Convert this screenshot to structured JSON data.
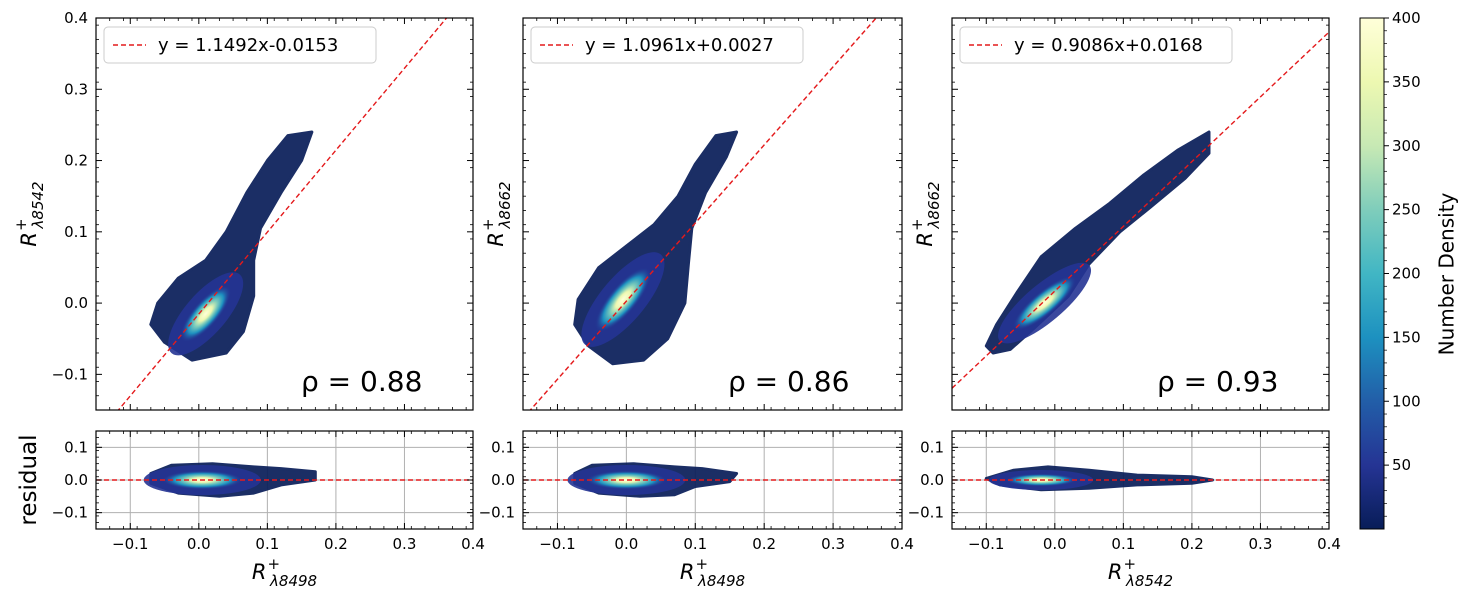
{
  "colors": {
    "fit_line": "#e41a1c",
    "grid": "#b0b0b0",
    "axis": "#000000",
    "legend_border": "#cccccc",
    "colormap": [
      "#081d58",
      "#253494",
      "#225ea8",
      "#1d91c0",
      "#41b6c4",
      "#7fcdbb",
      "#c7e9b4",
      "#edf8b1",
      "#ffffd9"
    ]
  },
  "chart_data": [
    {
      "type": "scatter",
      "subtype": "2d-density",
      "panel": "top",
      "xlabel_base": "R",
      "xlabel_sub": "λ8498",
      "xlabel_sup": "+",
      "ylabel_base": "R",
      "ylabel_sub": "λ8542",
      "ylabel_sup": "+",
      "xlim": [
        -0.15,
        0.4
      ],
      "ylim": [
        -0.15,
        0.4
      ],
      "xticks": [
        -0.1,
        0.0,
        0.1,
        0.2,
        0.3,
        0.4
      ],
      "yticks": [
        -0.1,
        0.0,
        0.1,
        0.2,
        0.3,
        0.4
      ],
      "xtick_labels": [
        "−0.1",
        "0.0",
        "0.1",
        "0.2",
        "0.3",
        "0.4"
      ],
      "ytick_labels": [
        "−0.1",
        "0.0",
        "0.1",
        "0.2",
        "0.3",
        "0.4"
      ],
      "show_xtick_labels": false,
      "show_ytick_labels": true,
      "fit": {
        "slope": 1.1492,
        "intercept": -0.0153,
        "label": "y = 1.1492x-0.0153"
      },
      "rho_label": "ρ = 0.88",
      "density_path": [
        [
          -0.01,
          -0.08
        ],
        [
          -0.05,
          -0.055
        ],
        [
          -0.07,
          -0.03
        ],
        [
          -0.06,
          0.0
        ],
        [
          -0.03,
          0.035
        ],
        [
          0.01,
          0.06
        ],
        [
          0.04,
          0.1
        ],
        [
          0.07,
          0.155
        ],
        [
          0.1,
          0.2
        ],
        [
          0.13,
          0.235
        ],
        [
          0.165,
          0.24
        ],
        [
          0.15,
          0.2
        ],
        [
          0.12,
          0.155
        ],
        [
          0.09,
          0.105
        ],
        [
          0.08,
          0.06
        ],
        [
          0.08,
          0.01
        ],
        [
          0.065,
          -0.04
        ],
        [
          0.04,
          -0.07
        ]
      ],
      "core_center": [
        0.01,
        -0.015
      ],
      "core_axes": [
        0.04,
        0.012
      ],
      "core_angle_deg": 49
    },
    {
      "type": "scatter",
      "subtype": "2d-density",
      "panel": "top",
      "xlabel_base": "R",
      "xlabel_sub": "λ8498",
      "xlabel_sup": "+",
      "ylabel_base": "R",
      "ylabel_sub": "λ8662",
      "ylabel_sup": "+",
      "xlim": [
        -0.15,
        0.4
      ],
      "ylim": [
        -0.15,
        0.4
      ],
      "xticks": [
        -0.1,
        0.0,
        0.1,
        0.2,
        0.3,
        0.4
      ],
      "yticks": [
        -0.1,
        0.0,
        0.1,
        0.2,
        0.3,
        0.4
      ],
      "xtick_labels": [
        "−0.1",
        "0.0",
        "0.1",
        "0.2",
        "0.3",
        "0.4"
      ],
      "ytick_labels": [
        "−0.1",
        "0.0",
        "0.1",
        "0.2",
        "0.3",
        "0.4"
      ],
      "show_xtick_labels": false,
      "show_ytick_labels": false,
      "fit": {
        "slope": 1.0961,
        "intercept": 0.0027,
        "label": "y = 1.0961x+0.0027"
      },
      "rho_label": "ρ = 0.86",
      "density_path": [
        [
          -0.02,
          -0.085
        ],
        [
          -0.055,
          -0.06
        ],
        [
          -0.075,
          -0.03
        ],
        [
          -0.07,
          0.005
        ],
        [
          -0.04,
          0.05
        ],
        [
          0.0,
          0.08
        ],
        [
          0.04,
          0.11
        ],
        [
          0.075,
          0.15
        ],
        [
          0.1,
          0.195
        ],
        [
          0.13,
          0.235
        ],
        [
          0.16,
          0.24
        ],
        [
          0.145,
          0.205
        ],
        [
          0.115,
          0.155
        ],
        [
          0.095,
          0.105
        ],
        [
          0.09,
          0.055
        ],
        [
          0.085,
          0.0
        ],
        [
          0.06,
          -0.05
        ],
        [
          0.025,
          -0.08
        ]
      ],
      "core_center": [
        -0.005,
        0.005
      ],
      "core_axes": [
        0.045,
        0.013
      ],
      "core_angle_deg": 50
    },
    {
      "type": "scatter",
      "subtype": "2d-density",
      "panel": "top",
      "xlabel_base": "R",
      "xlabel_sub": "λ8542",
      "xlabel_sup": "+",
      "ylabel_base": "R",
      "ylabel_sub": "λ8662",
      "ylabel_sup": "+",
      "xlim": [
        -0.15,
        0.4
      ],
      "ylim": [
        -0.15,
        0.4
      ],
      "xticks": [
        -0.1,
        0.0,
        0.1,
        0.2,
        0.3,
        0.4
      ],
      "yticks": [
        -0.1,
        0.0,
        0.1,
        0.2,
        0.3,
        0.4
      ],
      "xtick_labels": [
        "−0.1",
        "0.0",
        "0.1",
        "0.2",
        "0.3",
        "0.4"
      ],
      "ytick_labels": [
        "−0.1",
        "0.0",
        "0.1",
        "0.2",
        "0.3",
        "0.4"
      ],
      "show_xtick_labels": false,
      "show_ytick_labels": false,
      "fit": {
        "slope": 0.9086,
        "intercept": 0.0168,
        "label": "y = 0.9086x+0.0168"
      },
      "rho_label": "ρ = 0.93",
      "density_path": [
        [
          -0.09,
          -0.07
        ],
        [
          -0.1,
          -0.06
        ],
        [
          -0.085,
          -0.03
        ],
        [
          -0.055,
          0.015
        ],
        [
          -0.02,
          0.065
        ],
        [
          0.03,
          0.105
        ],
        [
          0.08,
          0.14
        ],
        [
          0.13,
          0.18
        ],
        [
          0.18,
          0.215
        ],
        [
          0.225,
          0.24
        ],
        [
          0.225,
          0.21
        ],
        [
          0.19,
          0.175
        ],
        [
          0.14,
          0.135
        ],
        [
          0.095,
          0.1
        ],
        [
          0.05,
          0.055
        ],
        [
          0.02,
          0.01
        ],
        [
          -0.03,
          -0.035
        ],
        [
          -0.065,
          -0.065
        ]
      ],
      "core_center": [
        -0.015,
        0.0
      ],
      "core_axes": [
        0.045,
        0.011
      ],
      "core_angle_deg": 40
    },
    {
      "type": "scatter",
      "subtype": "2d-density",
      "panel": "residual",
      "ylabel": "residual",
      "xlabel_base": "R",
      "xlabel_sub": "λ8498",
      "xlabel_sup": "+",
      "xlim": [
        -0.15,
        0.4
      ],
      "ylim": [
        -0.15,
        0.15
      ],
      "xticks": [
        -0.1,
        0.0,
        0.1,
        0.2,
        0.3,
        0.4
      ],
      "yticks": [
        -0.1,
        0.0,
        0.1
      ],
      "xtick_labels": [
        "−0.1",
        "0.0",
        "0.1",
        "0.2",
        "0.3",
        "0.4"
      ],
      "ytick_labels": [
        "−0.1",
        "0.0",
        "0.1"
      ],
      "grid": true,
      "zero_line": 0.0,
      "density_path": [
        [
          -0.07,
          0.02
        ],
        [
          -0.04,
          0.045
        ],
        [
          0.02,
          0.05
        ],
        [
          0.08,
          0.04
        ],
        [
          0.12,
          0.035
        ],
        [
          0.17,
          0.025
        ],
        [
          0.17,
          0.0
        ],
        [
          0.12,
          -0.015
        ],
        [
          0.08,
          -0.04
        ],
        [
          0.03,
          -0.05
        ],
        [
          -0.03,
          -0.04
        ],
        [
          -0.07,
          -0.01
        ]
      ],
      "core_center": [
        0.005,
        0.0
      ],
      "core_axes": [
        0.045,
        0.012
      ]
    },
    {
      "type": "scatter",
      "subtype": "2d-density",
      "panel": "residual",
      "xlabel_base": "R",
      "xlabel_sub": "λ8498",
      "xlabel_sup": "+",
      "xlim": [
        -0.15,
        0.4
      ],
      "ylim": [
        -0.15,
        0.15
      ],
      "xticks": [
        -0.1,
        0.0,
        0.1,
        0.2,
        0.3,
        0.4
      ],
      "yticks": [
        -0.1,
        0.0,
        0.1
      ],
      "xtick_labels": [
        "−0.1",
        "0.0",
        "0.1",
        "0.2",
        "0.3",
        "0.4"
      ],
      "ytick_labels": [
        "−0.1",
        "0.0",
        "0.1"
      ],
      "grid": true,
      "zero_line": 0.0,
      "density_path": [
        [
          -0.075,
          0.02
        ],
        [
          -0.05,
          0.045
        ],
        [
          0.01,
          0.05
        ],
        [
          0.07,
          0.04
        ],
        [
          0.11,
          0.035
        ],
        [
          0.16,
          0.02
        ],
        [
          0.15,
          -0.005
        ],
        [
          0.1,
          -0.02
        ],
        [
          0.07,
          -0.045
        ],
        [
          0.02,
          -0.05
        ],
        [
          -0.04,
          -0.04
        ],
        [
          -0.075,
          -0.01
        ]
      ],
      "core_center": [
        0.0,
        0.0
      ],
      "core_axes": [
        0.045,
        0.012
      ]
    },
    {
      "type": "scatter",
      "subtype": "2d-density",
      "panel": "residual",
      "xlabel_base": "R",
      "xlabel_sub": "λ8542",
      "xlabel_sup": "+",
      "xlim": [
        -0.15,
        0.4
      ],
      "ylim": [
        -0.15,
        0.15
      ],
      "xticks": [
        -0.1,
        0.0,
        0.1,
        0.2,
        0.3,
        0.4
      ],
      "yticks": [
        -0.1,
        0.0,
        0.1
      ],
      "xtick_labels": [
        "−0.1",
        "0.0",
        "0.1",
        "0.2",
        "0.3",
        "0.4"
      ],
      "ytick_labels": [
        "−0.1",
        "0.0",
        "0.1"
      ],
      "grid": true,
      "zero_line": 0.0,
      "density_path": [
        [
          -0.1,
          0.005
        ],
        [
          -0.06,
          0.03
        ],
        [
          -0.01,
          0.04
        ],
        [
          0.05,
          0.03
        ],
        [
          0.12,
          0.015
        ],
        [
          0.2,
          0.01
        ],
        [
          0.23,
          0.0
        ],
        [
          0.2,
          -0.01
        ],
        [
          0.12,
          -0.015
        ],
        [
          0.05,
          -0.025
        ],
        [
          -0.02,
          -0.03
        ],
        [
          -0.08,
          -0.015
        ]
      ],
      "core_center": [
        -0.02,
        0.0
      ],
      "core_axes": [
        0.04,
        0.008
      ]
    }
  ],
  "colorbar": {
    "label": "Number Density",
    "range": [
      0,
      400
    ],
    "ticks": [
      50,
      100,
      150,
      200,
      250,
      300,
      350,
      400
    ],
    "tick_labels": [
      "50",
      "100",
      "150",
      "200",
      "250",
      "300",
      "350",
      "400"
    ]
  }
}
